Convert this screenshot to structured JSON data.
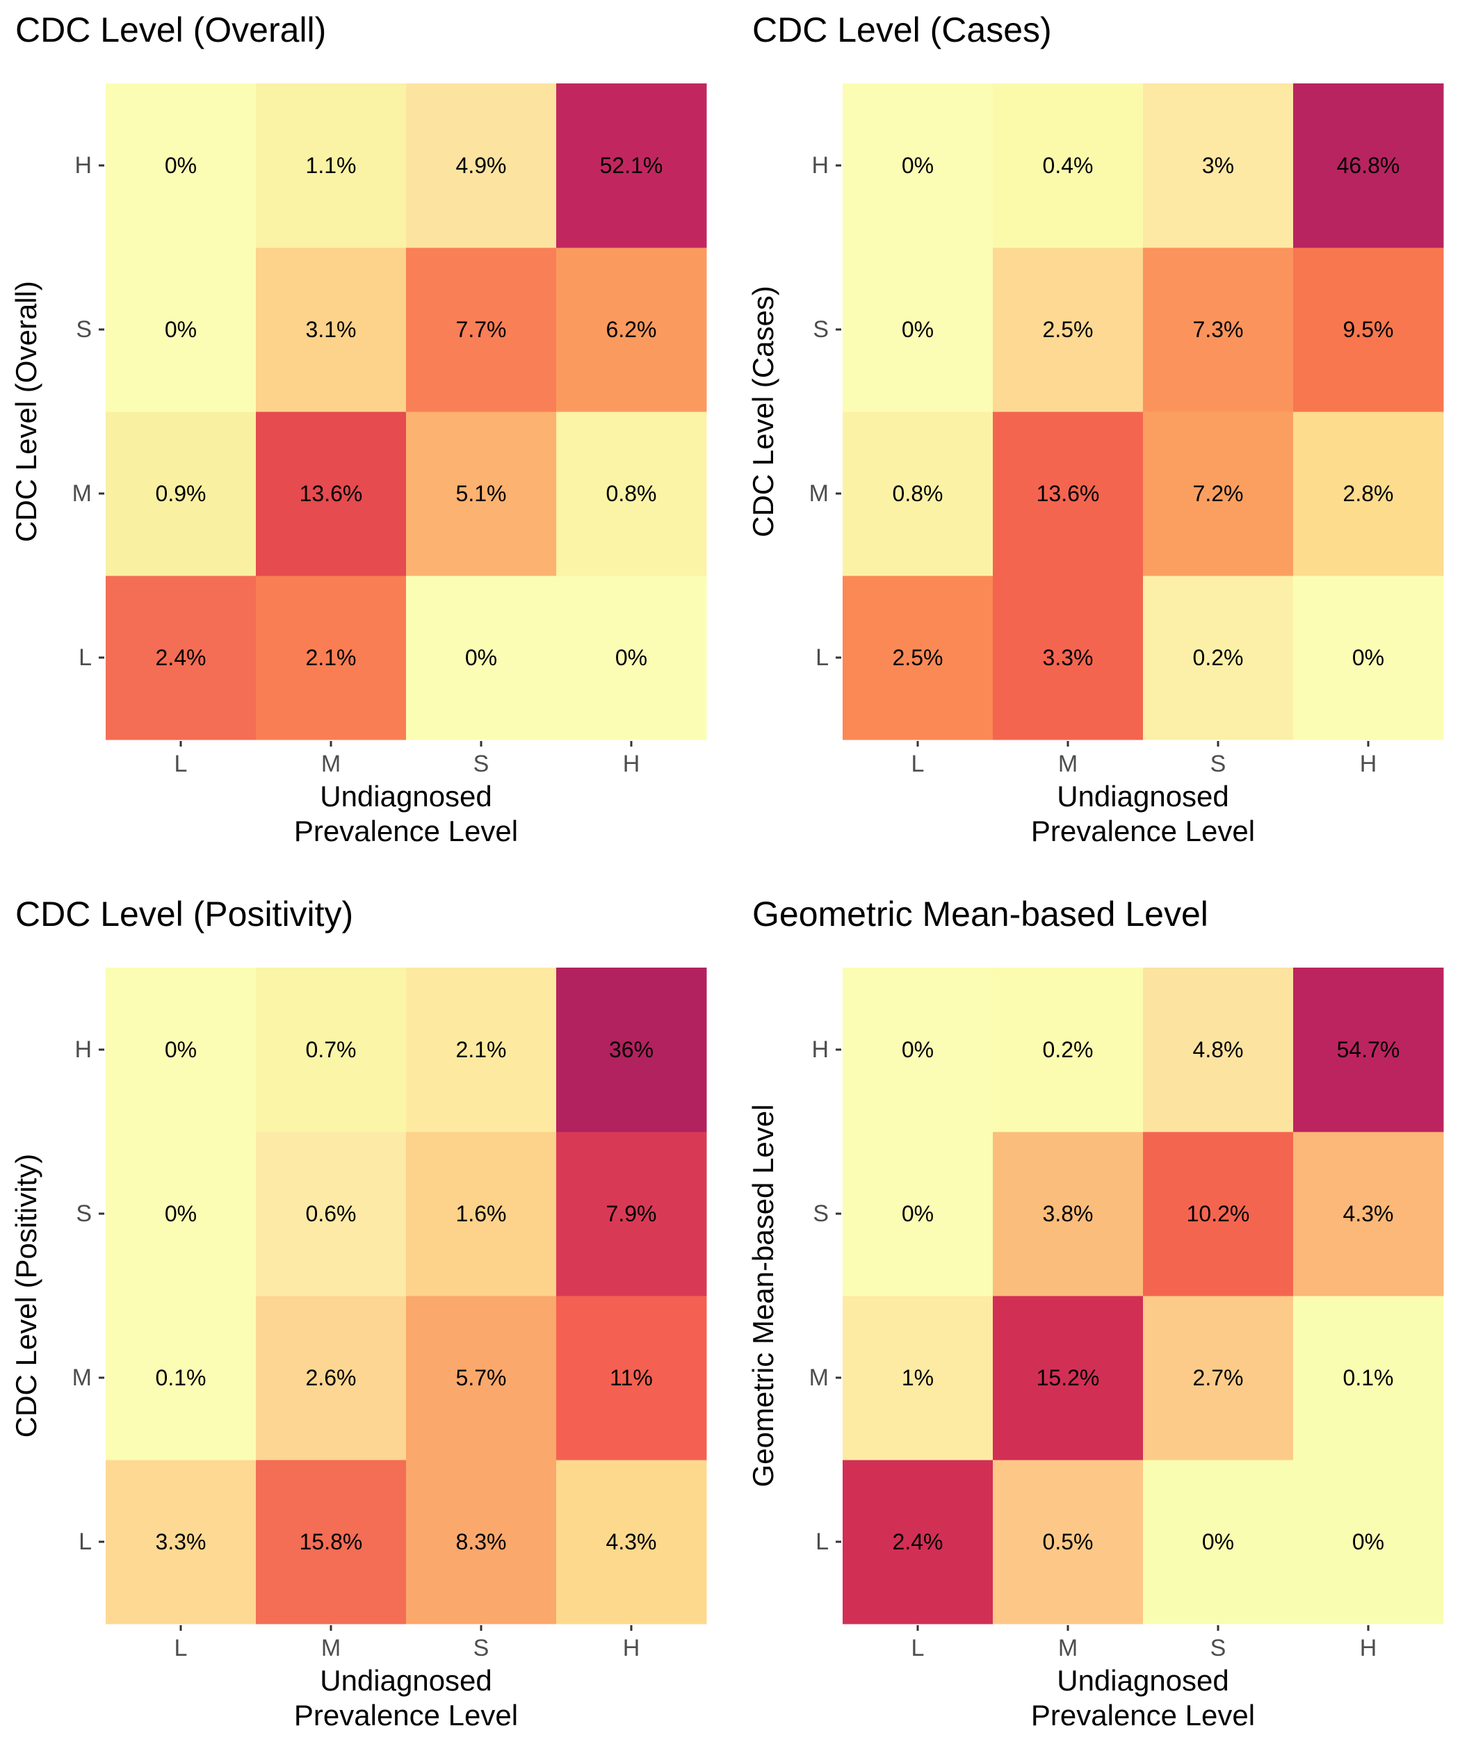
{
  "chart_data": [
    {
      "type": "heatmap",
      "title": "CDC Level (Overall)",
      "xlabel": "Undiagnosed\nPrevalence Level",
      "ylabel": "CDC Level (Overall)",
      "x_categories": [
        "L",
        "M",
        "S",
        "H"
      ],
      "y_categories": [
        "L",
        "M",
        "S",
        "H"
      ],
      "values": [
        [
          2.4,
          2.1,
          0,
          0
        ],
        [
          0.9,
          13.6,
          5.1,
          0.8
        ],
        [
          0,
          3.1,
          7.7,
          6.2
        ],
        [
          0,
          1.1,
          4.9,
          52.1
        ]
      ],
      "labels": [
        [
          "2.4%",
          "2.1%",
          "0%",
          "0%"
        ],
        [
          "0.9%",
          "13.6%",
          "5.1%",
          "0.8%"
        ],
        [
          "0%",
          "3.1%",
          "7.7%",
          "6.2%"
        ],
        [
          "0%",
          "1.1%",
          "4.9%",
          "52.1%"
        ]
      ],
      "colors": [
        [
          "#f46d55",
          "#f97e54",
          "#fbfdb4",
          "#fbfdb4"
        ],
        [
          "#f9f0a2",
          "#e54b4f",
          "#fcb270",
          "#fbf3a6"
        ],
        [
          "#fbfdb4",
          "#fdd28a",
          "#f97f57",
          "#fb9a5f"
        ],
        [
          "#fbfdb4",
          "#faf2a5",
          "#fde3a0",
          "#c1275e"
        ]
      ],
      "grid": false,
      "legend": "none"
    },
    {
      "type": "heatmap",
      "title": "CDC Level (Cases)",
      "xlabel": "Undiagnosed\nPrevalence Level",
      "ylabel": "CDC Level (Cases)",
      "x_categories": [
        "L",
        "M",
        "S",
        "H"
      ],
      "y_categories": [
        "L",
        "M",
        "S",
        "H"
      ],
      "values": [
        [
          2.5,
          3.3,
          0.2,
          0
        ],
        [
          0.8,
          13.6,
          7.2,
          2.8
        ],
        [
          0,
          2.5,
          7.3,
          9.5
        ],
        [
          0,
          0.4,
          3,
          46.8
        ]
      ],
      "labels": [
        [
          "2.5%",
          "3.3%",
          "0.2%",
          "0%"
        ],
        [
          "0.8%",
          "13.6%",
          "7.2%",
          "2.8%"
        ],
        [
          "0%",
          "2.5%",
          "7.3%",
          "9.5%"
        ],
        [
          "0%",
          "0.4%",
          "3%",
          "46.8%"
        ]
      ],
      "colors": [
        [
          "#fa8956",
          "#f46550",
          "#fcf0a8",
          "#fbfdb4"
        ],
        [
          "#fcf2a6",
          "#f46550",
          "#fb9f61",
          "#fddc8e"
        ],
        [
          "#fbfdb4",
          "#fdd993",
          "#fb935c",
          "#f8774f"
        ],
        [
          "#fbfdb4",
          "#fbfaab",
          "#fde8a4",
          "#b82460"
        ]
      ],
      "grid": false,
      "legend": "none"
    },
    {
      "type": "heatmap",
      "title": "CDC Level (Positivity)",
      "xlabel": "Undiagnosed\nPrevalence Level",
      "ylabel": "CDC Level (Positivity)",
      "x_categories": [
        "L",
        "M",
        "S",
        "H"
      ],
      "y_categories": [
        "L",
        "M",
        "S",
        "H"
      ],
      "values": [
        [
          3.3,
          15.8,
          8.3,
          4.3
        ],
        [
          0.1,
          2.6,
          5.7,
          11
        ],
        [
          0,
          0.6,
          1.6,
          7.9
        ],
        [
          0,
          0.7,
          2.1,
          36
        ]
      ],
      "labels": [
        [
          "3.3%",
          "15.8%",
          "8.3%",
          "4.3%"
        ],
        [
          "0.1%",
          "2.6%",
          "5.7%",
          "11%"
        ],
        [
          "0%",
          "0.6%",
          "1.6%",
          "7.9%"
        ],
        [
          "0%",
          "0.7%",
          "2.1%",
          "36%"
        ]
      ],
      "colors": [
        [
          "#fdd993",
          "#f46d55",
          "#fba86d",
          "#fdd98e"
        ],
        [
          "#fbfdb4",
          "#fdd693",
          "#fba86c",
          "#f46051"
        ],
        [
          "#fbfdb4",
          "#fdeaa7",
          "#fdd28a",
          "#d83a56"
        ],
        [
          "#fbfdb4",
          "#faf5a7",
          "#fdeaa0",
          "#b2225f"
        ]
      ],
      "grid": false,
      "legend": "none"
    },
    {
      "type": "heatmap",
      "title": "Geometric Mean-based Level",
      "xlabel": "Undiagnosed\nPrevalence Level",
      "ylabel": "Geometric Mean-based Level",
      "x_categories": [
        "L",
        "M",
        "S",
        "H"
      ],
      "y_categories": [
        "L",
        "M",
        "S",
        "H"
      ],
      "values": [
        [
          2.4,
          0.5,
          0,
          0
        ],
        [
          1,
          15.2,
          2.7,
          0.1
        ],
        [
          0,
          3.8,
          10.2,
          4.3
        ],
        [
          0,
          0.2,
          4.8,
          54.7
        ]
      ],
      "labels": [
        [
          "2.4%",
          "0.5%",
          "0%",
          "0%"
        ],
        [
          "1%",
          "15.2%",
          "2.7%",
          "0.1%"
        ],
        [
          "0%",
          "3.8%",
          "10.2%",
          "4.3%"
        ],
        [
          "0%",
          "0.2%",
          "4.8%",
          "54.7%"
        ]
      ],
      "colors": [
        [
          "#d22f55",
          "#fdc887",
          "#f9fdb1",
          "#f9fdb1"
        ],
        [
          "#fdeaa3",
          "#d22f55",
          "#fdcb89",
          "#f9fdb1"
        ],
        [
          "#fbfdb4",
          "#fbbd7c",
          "#f46550",
          "#fbb878"
        ],
        [
          "#fbfdb4",
          "#fbfcb0",
          "#fde3a0",
          "#bc2460"
        ]
      ],
      "grid": false,
      "legend": "none"
    }
  ]
}
